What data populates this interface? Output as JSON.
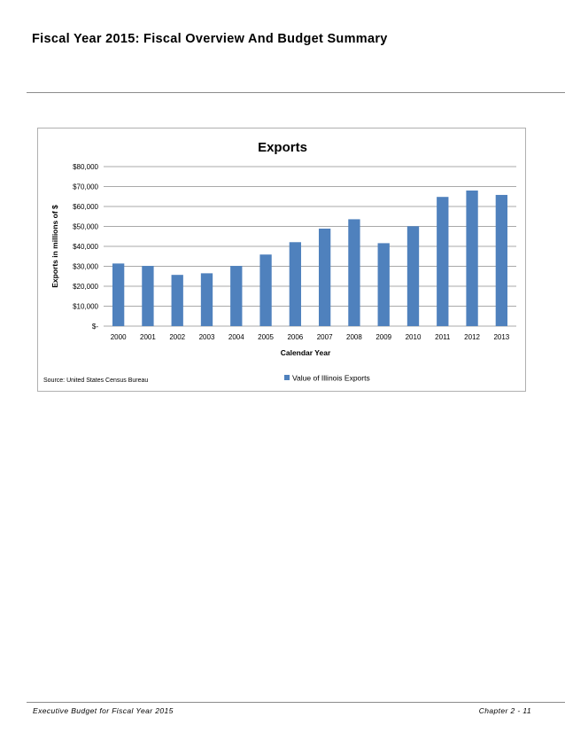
{
  "page": {
    "title": "Fiscal Year 2015:  Fiscal Overview And Budget Summary",
    "footer_left": "Executive Budget for Fiscal Year 2015",
    "footer_right": "Chapter 2 - 11"
  },
  "chart_data": {
    "type": "bar",
    "title": "Exports",
    "xlabel": "Calendar Year",
    "ylabel": "Exports in millions of $",
    "categories": [
      "2000",
      "2001",
      "2002",
      "2003",
      "2004",
      "2005",
      "2006",
      "2007",
      "2008",
      "2009",
      "2010",
      "2011",
      "2012",
      "2013"
    ],
    "series": [
      {
        "name": "Value of Illinois Exports",
        "values": [
          31400,
          30200,
          25700,
          26500,
          30200,
          35900,
          42100,
          48900,
          53600,
          41600,
          50100,
          64800,
          68000,
          65800
        ]
      }
    ],
    "ylim": [
      0,
      80000
    ],
    "y_ticks": [
      0,
      10000,
      20000,
      30000,
      40000,
      50000,
      60000,
      70000,
      80000
    ],
    "y_tick_labels": [
      "$-",
      "$10,000",
      "$20,000",
      "$30,000",
      "$40,000",
      "$50,000",
      "$60,000",
      "$70,000",
      "$80,000"
    ],
    "grid": true,
    "legend": "bottom",
    "source_note": "Source: United States Census Bureau",
    "bar_color": "#4f81bd",
    "grid_color": "#8c8c8c"
  }
}
